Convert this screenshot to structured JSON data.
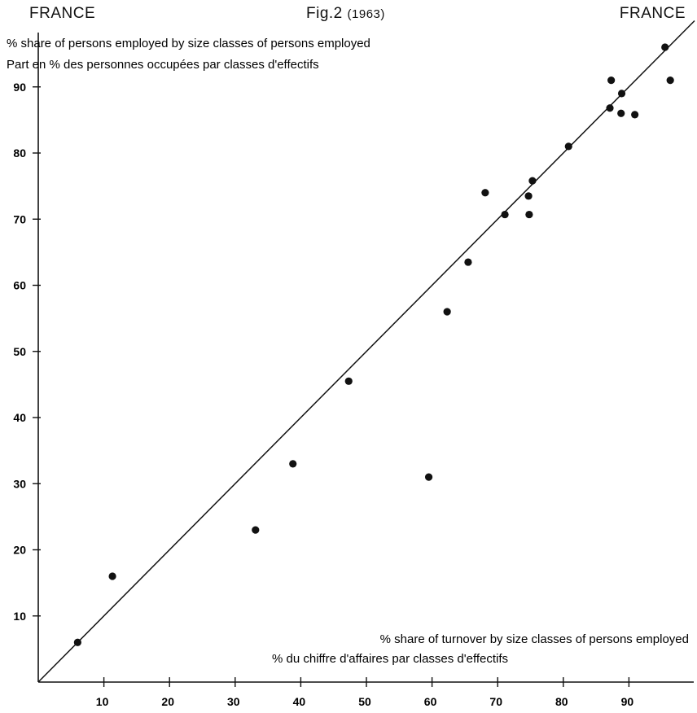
{
  "header": {
    "left": "FRANCE",
    "right": "FRANCE",
    "fig_label": "Fig.2",
    "fig_year": "(1963)"
  },
  "chart_data": {
    "type": "scatter",
    "ylabel": [
      "% share of persons employed by size classes of persons employed",
      "Part en % des personnes occupées par classes d'effectifs"
    ],
    "xlabel": [
      "% share of turnover by size classes of persons employed",
      "% du chiffre d'affaires par classes d'effectifs"
    ],
    "xlim": [
      0,
      100
    ],
    "ylim": [
      0,
      100
    ],
    "xticks": [
      10,
      20,
      30,
      40,
      50,
      60,
      70,
      80,
      90
    ],
    "yticks": [
      10,
      20,
      30,
      40,
      50,
      60,
      70,
      80,
      90
    ],
    "reference_line": {
      "from": [
        0,
        0
      ],
      "to": [
        100,
        100
      ]
    },
    "points": [
      {
        "x": 6,
        "y": 6
      },
      {
        "x": 11.3,
        "y": 16
      },
      {
        "x": 33.1,
        "y": 23
      },
      {
        "x": 38.8,
        "y": 33
      },
      {
        "x": 47.3,
        "y": 45.5
      },
      {
        "x": 59.5,
        "y": 31
      },
      {
        "x": 62.3,
        "y": 56
      },
      {
        "x": 65.5,
        "y": 63.5
      },
      {
        "x": 68.1,
        "y": 74
      },
      {
        "x": 71.1,
        "y": 70.7
      },
      {
        "x": 74.7,
        "y": 73.5
      },
      {
        "x": 74.8,
        "y": 70.7
      },
      {
        "x": 75.3,
        "y": 75.8
      },
      {
        "x": 80.8,
        "y": 81
      },
      {
        "x": 87.1,
        "y": 86.8
      },
      {
        "x": 87.3,
        "y": 91
      },
      {
        "x": 88.8,
        "y": 86
      },
      {
        "x": 88.9,
        "y": 89
      },
      {
        "x": 90.9,
        "y": 85.8
      },
      {
        "x": 95.5,
        "y": 96
      },
      {
        "x": 96.3,
        "y": 91
      }
    ]
  }
}
